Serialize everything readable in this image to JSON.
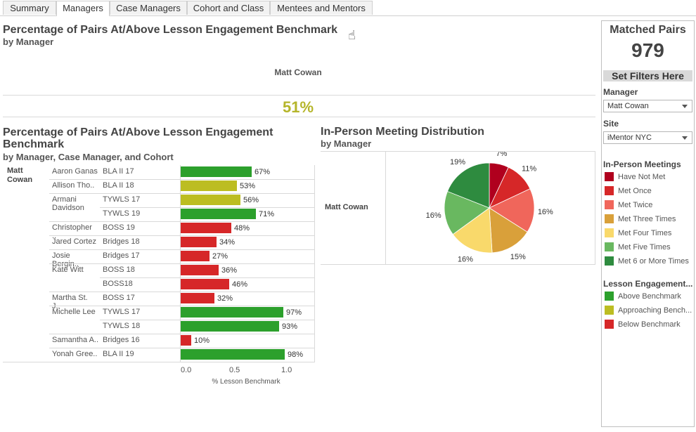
{
  "tabs": [
    {
      "label": "Summary",
      "active": false
    },
    {
      "label": "Managers",
      "active": true
    },
    {
      "label": "Case Managers",
      "active": false
    },
    {
      "label": "Cohort and Class",
      "active": false
    },
    {
      "label": "Mentees and Mentors",
      "active": false
    }
  ],
  "top_panel": {
    "title": "Percentage of Pairs At/Above Lesson Engagement Benchmark",
    "subtitle": "by Manager",
    "manager_label": "Matt Cowan",
    "value_text": "51%",
    "value_color": "#b5b52a"
  },
  "bar_panel": {
    "title_line1": "Percentage of Pairs At/Above Lesson Engagement",
    "title_line2": "Benchmark",
    "subtitle": "by Manager, Case Manager, and Cohort",
    "manager_label": "Matt Cowan",
    "xlabel": "% Lesson Benchmark",
    "ticks": [
      "0.0",
      "0.5",
      "1.0"
    ]
  },
  "pie_panel": {
    "title": "In-Person Meeting Distribution",
    "subtitle": "by Manager",
    "row_label": "Matt Cowan"
  },
  "sidebar": {
    "matched_title": "Matched Pairs",
    "matched_value": "979",
    "filters_button": "Set Filters Here",
    "manager_label": "Manager",
    "manager_value": "Matt Cowan",
    "site_label": "Site",
    "site_value": "iMentor NYC",
    "meetings_legend_title": "In-Person Meetings",
    "meetings_legend": [
      {
        "label": "Have Not Met",
        "color": "#b0001e"
      },
      {
        "label": "Met Once",
        "color": "#d62728"
      },
      {
        "label": "Met Twice",
        "color": "#f0665b"
      },
      {
        "label": "Met Three Times",
        "color": "#d9a03a"
      },
      {
        "label": "Met Four Times",
        "color": "#f9d96b"
      },
      {
        "label": "Met Five Times",
        "color": "#69b860"
      },
      {
        "label": "Met 6 or More Times",
        "color": "#2e8b3f"
      }
    ],
    "engagement_legend_title": "Lesson Engagement...",
    "engagement_legend": [
      {
        "label": "Above Benchmark",
        "color": "#2ca02c"
      },
      {
        "label": "Approaching Bench...",
        "color": "#bcbd22"
      },
      {
        "label": "Below Benchmark",
        "color": "#d62728"
      }
    ]
  },
  "chart_data": [
    {
      "type": "bar",
      "orientation": "horizontal",
      "title": "Percentage of Pairs At/Above Lesson Engagement Benchmark",
      "subtitle": "by Manager, Case Manager, and Cohort",
      "xlabel": "% Lesson Benchmark",
      "xlim": [
        0,
        1.0
      ],
      "rows": [
        {
          "case_manager": "Aaron Ganas",
          "cohort": "BLA II 17",
          "value": 0.67,
          "label": "67%",
          "status": "above"
        },
        {
          "case_manager": "Allison Tho..",
          "cohort": "BLA II 18",
          "value": 0.53,
          "label": "53%",
          "status": "approaching"
        },
        {
          "case_manager": "Armani Davidson",
          "cohort": "TYWLS 17",
          "value": 0.56,
          "label": "56%",
          "status": "approaching"
        },
        {
          "case_manager": "",
          "cohort": "TYWLS 19",
          "value": 0.71,
          "label": "71%",
          "status": "above"
        },
        {
          "case_manager": "Christopher ..",
          "cohort": "BOSS 19",
          "value": 0.48,
          "label": "48%",
          "status": "below"
        },
        {
          "case_manager": "Jared Cortez",
          "cohort": "Bridges 18",
          "value": 0.34,
          "label": "34%",
          "status": "below"
        },
        {
          "case_manager": "Josie Bergin..",
          "cohort": "Bridges 17",
          "value": 0.27,
          "label": "27%",
          "status": "below"
        },
        {
          "case_manager": "Kate Witt",
          "cohort": "BOSS 18",
          "value": 0.36,
          "label": "36%",
          "status": "below"
        },
        {
          "case_manager": "",
          "cohort": "BOSS18",
          "value": 0.46,
          "label": "46%",
          "status": "below"
        },
        {
          "case_manager": "Martha St. J..",
          "cohort": "BOSS 17",
          "value": 0.32,
          "label": "32%",
          "status": "below"
        },
        {
          "case_manager": "Michelle Lee",
          "cohort": "TYWLS 17",
          "value": 0.97,
          "label": "97%",
          "status": "above"
        },
        {
          "case_manager": "",
          "cohort": "TYWLS 18",
          "value": 0.93,
          "label": "93%",
          "status": "above"
        },
        {
          "case_manager": "Samantha A..",
          "cohort": "Bridges 16",
          "value": 0.1,
          "label": "10%",
          "status": "below"
        },
        {
          "case_manager": "Yonah Gree..",
          "cohort": "BLA II 19",
          "value": 0.98,
          "label": "98%",
          "status": "above"
        }
      ]
    },
    {
      "type": "pie",
      "title": "In-Person Meeting Distribution",
      "subtitle": "by Manager",
      "slices": [
        {
          "label": "Have Not Met",
          "value": 7,
          "text": "7%",
          "color": "#b0001e"
        },
        {
          "label": "Met Once",
          "value": 11,
          "text": "11%",
          "color": "#d62728"
        },
        {
          "label": "Met Twice",
          "value": 16,
          "text": "16%",
          "color": "#f0665b"
        },
        {
          "label": "Met Three Times",
          "value": 15,
          "text": "15%",
          "color": "#d9a03a"
        },
        {
          "label": "Met Four Times",
          "value": 16,
          "text": "16%",
          "color": "#f9d96b"
        },
        {
          "label": "Met Five Times",
          "value": 16,
          "text": "16%",
          "color": "#69b860"
        },
        {
          "label": "Met 6 or More Times",
          "value": 19,
          "text": "19%",
          "color": "#2e8b3f"
        }
      ]
    }
  ]
}
